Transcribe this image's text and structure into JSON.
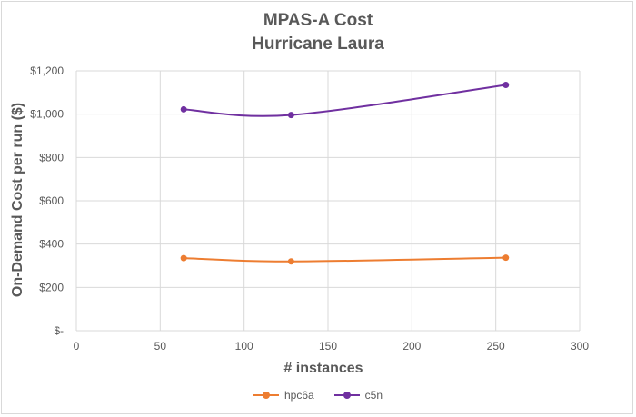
{
  "chart_data": {
    "type": "line",
    "title": "MPAS-A Cost",
    "subtitle": "Hurricane Laura",
    "xlabel": "# instances",
    "ylabel": "On-Demand Cost per run ($)",
    "xlim": [
      0,
      300
    ],
    "ylim": [
      0,
      1200
    ],
    "x_ticks": [
      "0",
      "50",
      "100",
      "150",
      "200",
      "250",
      "300"
    ],
    "y_ticks": [
      "$-",
      "$200",
      "$400",
      "$600",
      "$800",
      "$1,000",
      "$1,200"
    ],
    "grid": true,
    "legend_position": "bottom",
    "series": [
      {
        "name": "hpc6a",
        "color": "#ed7d31",
        "x": [
          64,
          128,
          256
        ],
        "y": [
          335,
          320,
          337
        ]
      },
      {
        "name": "c5n",
        "color": "#7030a0",
        "x": [
          64,
          128,
          256
        ],
        "y": [
          1022,
          996,
          1135
        ]
      }
    ]
  }
}
